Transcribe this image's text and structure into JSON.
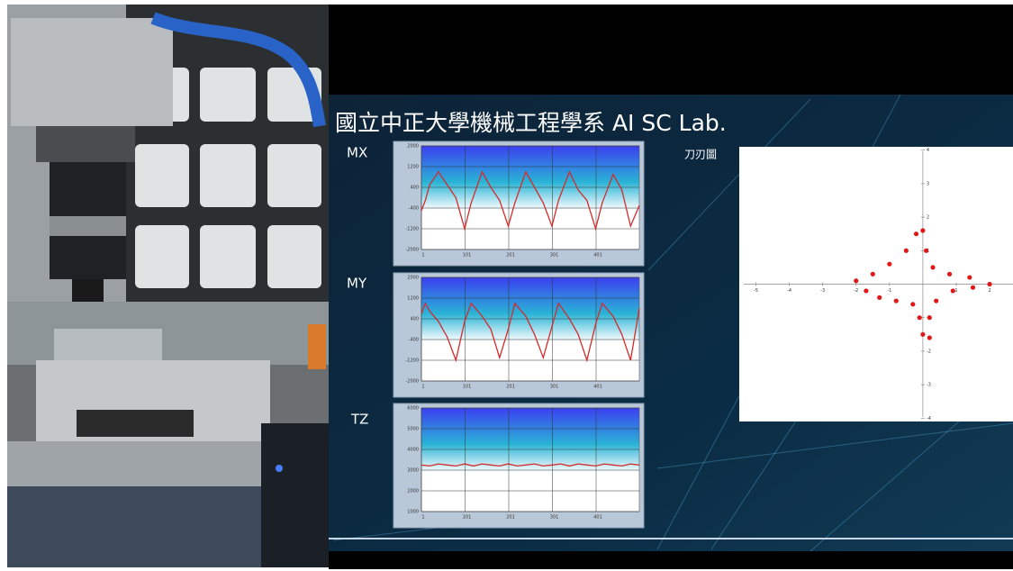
{
  "slide": {
    "title": "國立中正大學機械工程學系 AI SC Lab."
  },
  "chart_data": [
    {
      "type": "line",
      "title": "MX",
      "color": "#d42a2a",
      "x": [
        1,
        10,
        20,
        40,
        60,
        80,
        100,
        115,
        140,
        160,
        180,
        200,
        215,
        240,
        260,
        280,
        300,
        315,
        340,
        360,
        380,
        400,
        415,
        440,
        460,
        480,
        500
      ],
      "values": [
        -500,
        -100,
        500,
        1000,
        500,
        0,
        -1200,
        -200,
        1000,
        400,
        -100,
        -1100,
        -200,
        1000,
        400,
        -200,
        -1100,
        -100,
        1000,
        300,
        -100,
        -1200,
        -200,
        900,
        300,
        -1100,
        -300
      ],
      "xlim": [
        1,
        500
      ],
      "xticks": [
        1,
        101,
        201,
        301,
        401
      ],
      "ylim": [
        -2000,
        2000
      ],
      "yticks": [
        2000,
        1200,
        400,
        -400,
        -1200,
        -2000
      ],
      "grid": true
    },
    {
      "type": "line",
      "title": "MY",
      "color": "#d42a2a",
      "x": [
        1,
        10,
        20,
        40,
        60,
        80,
        100,
        115,
        140,
        160,
        180,
        200,
        215,
        240,
        260,
        280,
        300,
        315,
        340,
        360,
        380,
        400,
        415,
        440,
        460,
        480,
        500
      ],
      "values": [
        600,
        1000,
        700,
        300,
        -300,
        -1200,
        300,
        1000,
        500,
        0,
        -1100,
        0,
        1000,
        500,
        -200,
        -1100,
        100,
        1000,
        400,
        -200,
        -1200,
        200,
        1000,
        500,
        -200,
        -1200,
        800
      ],
      "xlim": [
        1,
        500
      ],
      "xticks": [
        1,
        101,
        201,
        301,
        401
      ],
      "ylim": [
        -2000,
        2000
      ],
      "yticks": [
        2000,
        1200,
        400,
        -400,
        -1200,
        -2000
      ],
      "grid": true
    },
    {
      "type": "line",
      "title": "TZ",
      "color": "#d42a2a",
      "x": [
        1,
        20,
        40,
        60,
        80,
        100,
        120,
        140,
        160,
        180,
        200,
        220,
        240,
        260,
        280,
        300,
        320,
        340,
        360,
        380,
        400,
        420,
        440,
        460,
        480,
        500
      ],
      "values": [
        3250,
        3200,
        3300,
        3250,
        3200,
        3300,
        3200,
        3300,
        3250,
        3200,
        3300,
        3200,
        3250,
        3300,
        3200,
        3250,
        3300,
        3200,
        3300,
        3250,
        3200,
        3300,
        3250,
        3200,
        3300,
        3250
      ],
      "xlim": [
        1,
        500
      ],
      "xticks": [
        1,
        101,
        201,
        301,
        401
      ],
      "ylim": [
        1000,
        6000
      ],
      "yticks": [
        6000,
        5000,
        4000,
        3000,
        2000,
        1000
      ],
      "grid": true
    },
    {
      "type": "scatter",
      "title": "刀刃圖",
      "color": "#e01818",
      "x": [
        -2.0,
        -1.5,
        -1.0,
        -0.5,
        -0.2,
        0,
        0.1,
        0.3,
        0.8,
        1.4,
        2.0,
        1.5,
        0.9,
        0.4,
        0.2,
        0.2,
        0,
        -0.1,
        -0.3,
        -0.8,
        -1.3,
        -1.7
      ],
      "y": [
        0.1,
        0.3,
        0.6,
        1.0,
        1.5,
        1.6,
        1.0,
        0.5,
        0.3,
        0.2,
        0.0,
        -0.1,
        -0.2,
        -0.5,
        -1.0,
        -1.6,
        -1.5,
        -1.0,
        -0.6,
        -0.5,
        -0.4,
        -0.2
      ],
      "xlim": [
        -5.5,
        2.7
      ],
      "xticks": [
        -5,
        -4,
        -3,
        -2,
        -1,
        1,
        2
      ],
      "ylim": [
        -4.1,
        4.1
      ],
      "yticks": [
        -4,
        -3,
        -2,
        -1,
        1,
        2,
        3,
        4
      ]
    }
  ]
}
